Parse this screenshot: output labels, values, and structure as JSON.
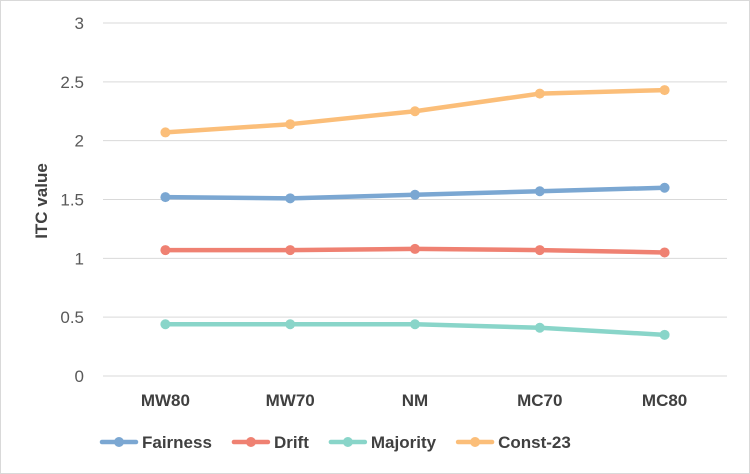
{
  "chart_data": {
    "type": "line",
    "title": "",
    "xlabel": "",
    "ylabel": "ITC value",
    "categories": [
      "MW80",
      "MW70",
      "NM",
      "MC70",
      "MC80"
    ],
    "ylim": [
      0,
      3
    ],
    "yticks": [
      "0",
      "0.5",
      "1",
      "1.5",
      "2",
      "2.5",
      "3"
    ],
    "grid": true,
    "legend_position": "bottom",
    "series": [
      {
        "name": "Fairness",
        "color": "#7ba7d2",
        "values": [
          1.52,
          1.51,
          1.54,
          1.57,
          1.6
        ]
      },
      {
        "name": "Drift",
        "color": "#ef8172",
        "values": [
          1.07,
          1.07,
          1.08,
          1.07,
          1.05
        ]
      },
      {
        "name": "Majority",
        "color": "#89d5c9",
        "values": [
          0.44,
          0.44,
          0.44,
          0.41,
          0.35
        ]
      },
      {
        "name": "Const-23",
        "color": "#fbbe79",
        "values": [
          2.07,
          2.14,
          2.25,
          2.4,
          2.43
        ]
      }
    ]
  }
}
